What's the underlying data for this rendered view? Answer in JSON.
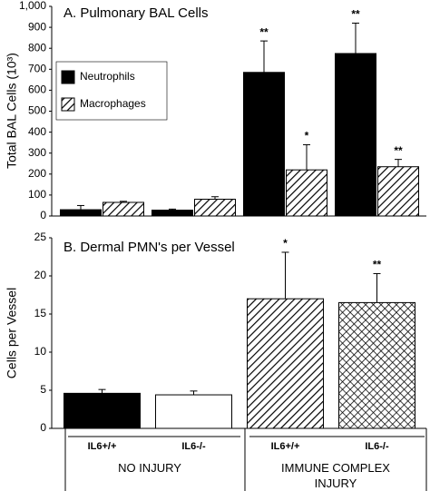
{
  "chart_data": [
    {
      "type": "bar",
      "title": "A. Pulmonary BAL Cells",
      "y_label": "Total BAL Cells (10³)",
      "ylim": [
        0,
        1000
      ],
      "yticks": [
        0,
        100,
        200,
        300,
        400,
        500,
        600,
        700,
        800,
        900,
        {
          "value": 1000,
          "label": "1,000"
        }
      ],
      "legend": "upper left",
      "series": [
        {
          "name": "Neutrophils",
          "color": "#000000",
          "hatch": null,
          "values": [
            30,
            28,
            685,
            775
          ],
          "errors": [
            20,
            5,
            150,
            145
          ],
          "annotations": [
            null,
            null,
            "**",
            "**"
          ]
        },
        {
          "name": "Macrophages",
          "color": "#000000",
          "hatch": "/",
          "values": [
            65,
            80,
            220,
            235
          ],
          "errors": [
            5,
            12,
            120,
            35
          ],
          "annotations": [
            null,
            null,
            "*",
            "**"
          ]
        }
      ]
    },
    {
      "type": "bar",
      "title": "B. Dermal PMN's per Vessel",
      "y_label": "Cells per Vessel",
      "ylim": [
        0,
        25
      ],
      "yticks": [
        0,
        5,
        10,
        15,
        20,
        25
      ],
      "categories": [
        "IL6+/+",
        "IL6-/-",
        "IL6+/+",
        "IL6-/-"
      ],
      "groups": [
        "NO INJURY",
        "IMMUNE COMPLEX INJURY"
      ],
      "values": [
        4.6,
        4.4,
        17,
        16.5
      ],
      "errors": [
        0.5,
        0.5,
        6.1,
        3.8
      ],
      "colors": [
        "#000000",
        "#ffffff",
        "#000000",
        "#000000"
      ],
      "hatches": [
        null,
        null,
        "/",
        "x"
      ],
      "annotations": [
        null,
        null,
        "*",
        "**"
      ]
    }
  ]
}
